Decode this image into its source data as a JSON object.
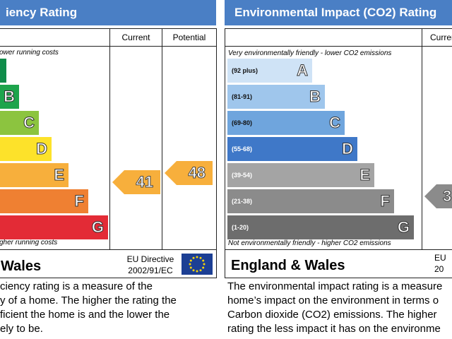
{
  "energy": {
    "title": "iency Rating",
    "col_current": "Current",
    "col_potential": "Potential",
    "top_note": "ower running costs",
    "bottom_note": "gher running costs",
    "bars": [
      {
        "letter": "",
        "color": "#0f8c4a"
      },
      {
        "letter": "B",
        "color": "#1da44c"
      },
      {
        "letter": "C",
        "color": "#8cc43f"
      },
      {
        "letter": "D",
        "color": "#fde22a"
      },
      {
        "letter": "E",
        "color": "#f7af3c"
      },
      {
        "letter": "F",
        "color": "#ef8032"
      },
      {
        "letter": "G",
        "color": "#e32b36"
      }
    ],
    "current": "41",
    "current_color": "#f7af3c",
    "potential": "48",
    "potential_color": "#f7af3c",
    "footer_region": "Wales",
    "eu_directive": "EU Directive",
    "eu_code": "2002/91/EC",
    "desc_lines": [
      "ciency rating is a measure of the",
      "y of a home. The higher the rating the",
      "ficient the home is and the lower the",
      "ely to be."
    ]
  },
  "environment": {
    "title": "Environmental Impact (CO2) Rating",
    "col_current": "Current",
    "top_note": "Very environmentally friendly - lower CO2 emissions",
    "bottom_note": "Not environmentally friendly - higher CO2 emissions",
    "bars": [
      {
        "range": "(92 plus)",
        "letter": "A",
        "color": "#cfe3f6"
      },
      {
        "range": "(81-91)",
        "letter": "B",
        "color": "#9fc6ec"
      },
      {
        "range": "(69-80)",
        "letter": "C",
        "color": "#6fa5dd"
      },
      {
        "range": "(55-68)",
        "letter": "D",
        "color": "#3f78c8"
      },
      {
        "range": "(39-54)",
        "letter": "E",
        "color": "#a4a4a4"
      },
      {
        "range": "(21-38)",
        "letter": "F",
        "color": "#8b8b8b"
      },
      {
        "range": "(1-20)",
        "letter": "G",
        "color": "#6d6d6d"
      }
    ],
    "current": "3",
    "current_color": "#8b8b8b",
    "footer_region": "England & Wales",
    "eu_directive": "EU",
    "eu_code": "20",
    "desc_lines": [
      "The environmental impact rating is a measure",
      "home’s impact on the environment in terms o",
      "Carbon dioxide (CO2) emissions. The higher",
      "rating the less impact it has on the environme"
    ]
  }
}
